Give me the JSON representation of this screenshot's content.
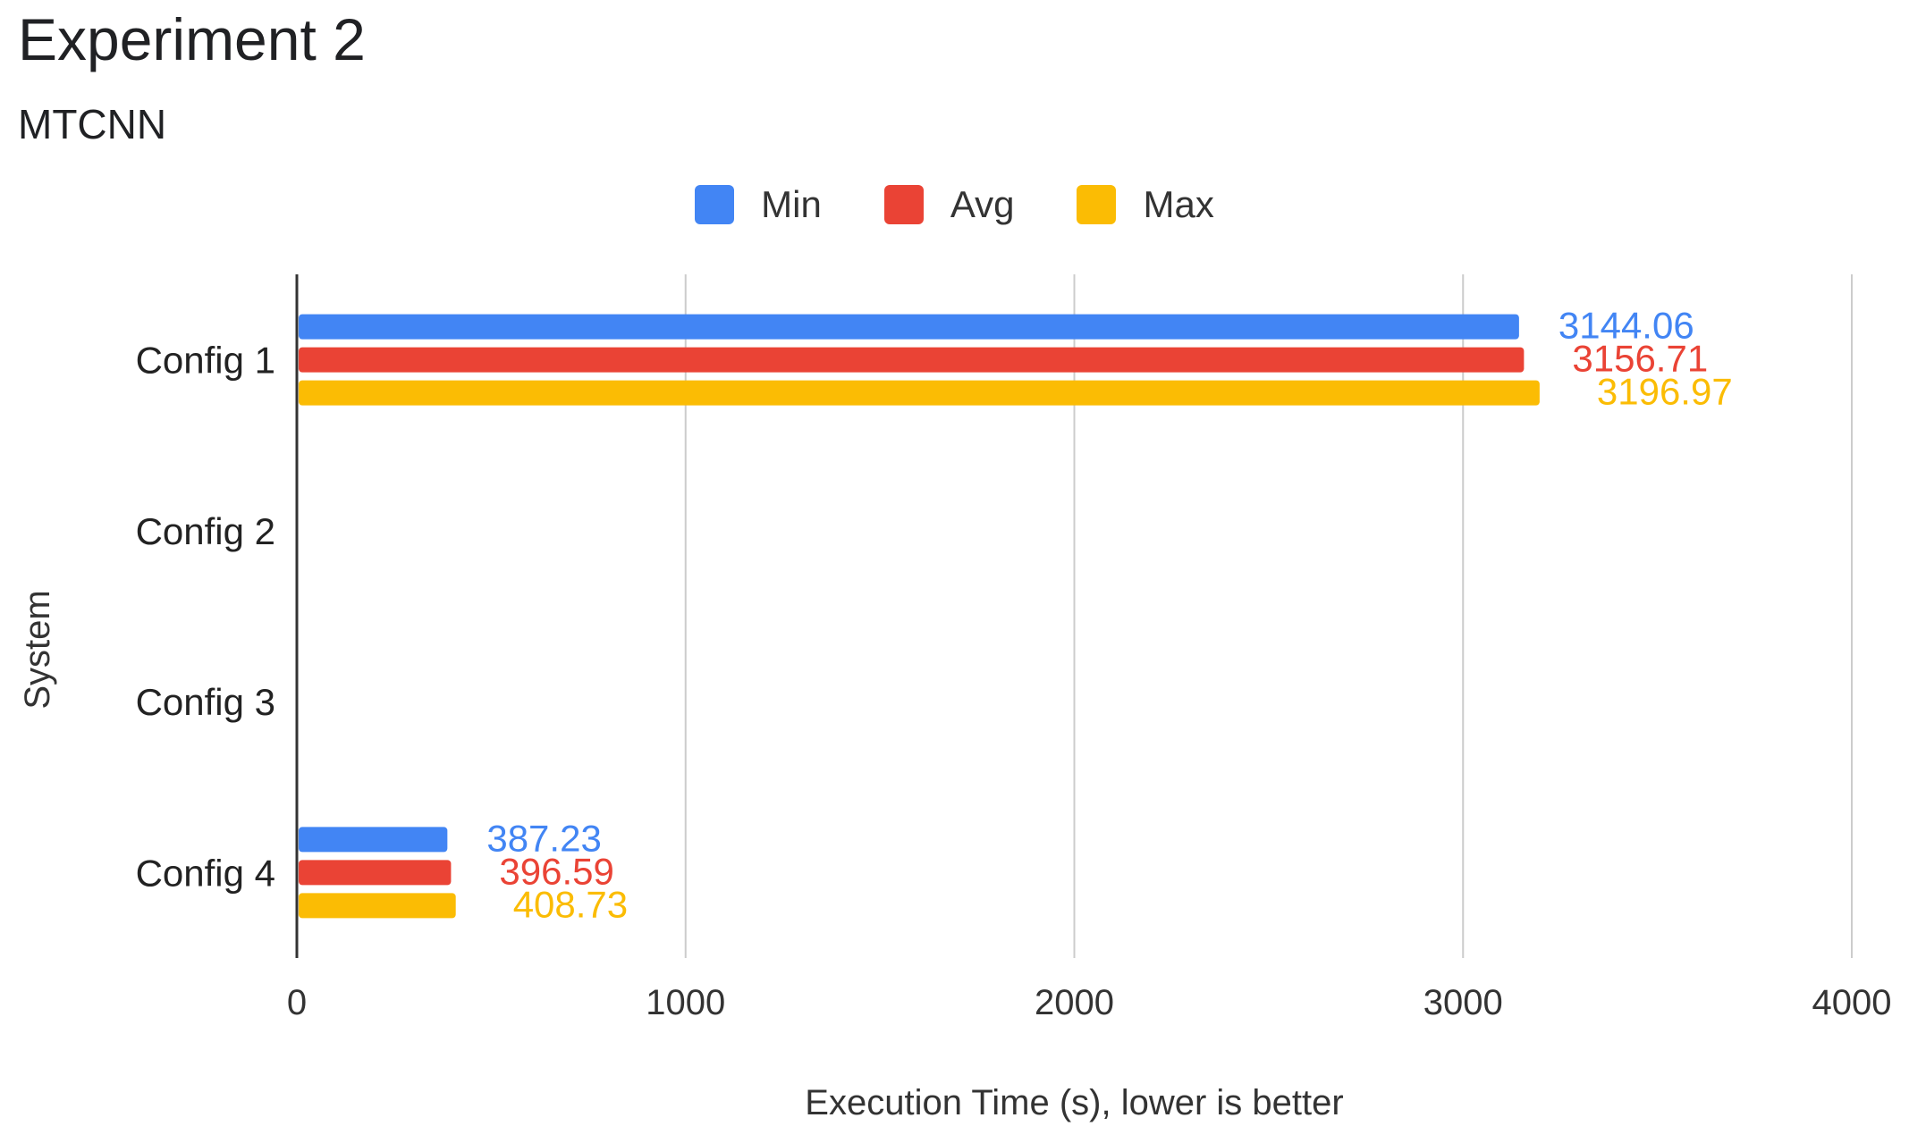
{
  "chart_data": {
    "type": "bar",
    "orientation": "horizontal",
    "title": "Experiment 2",
    "subtitle": "MTCNN",
    "xlabel": "Execution Time (s), lower is better",
    "ylabel": "System",
    "xlim": [
      0,
      4000
    ],
    "xticks": [
      "0",
      "1000",
      "2000",
      "3000",
      "4000"
    ],
    "categories": [
      "Config 1",
      "Config 2",
      "Config 3",
      "Config 4"
    ],
    "legend_position": "top",
    "grid": true,
    "series": [
      {
        "name": "Min",
        "color": "#4285F4",
        "values": [
          3144.06,
          null,
          null,
          387.23
        ],
        "labels": [
          "3144.06",
          "",
          "",
          "387.23"
        ]
      },
      {
        "name": "Avg",
        "color": "#EA4335",
        "values": [
          3156.71,
          null,
          null,
          396.59
        ],
        "labels": [
          "3156.71",
          "",
          "",
          "396.59"
        ]
      },
      {
        "name": "Max",
        "color": "#FBBC04",
        "values": [
          3196.97,
          null,
          null,
          408.73
        ],
        "labels": [
          "3196.97",
          "",
          "",
          "408.73"
        ]
      }
    ]
  }
}
